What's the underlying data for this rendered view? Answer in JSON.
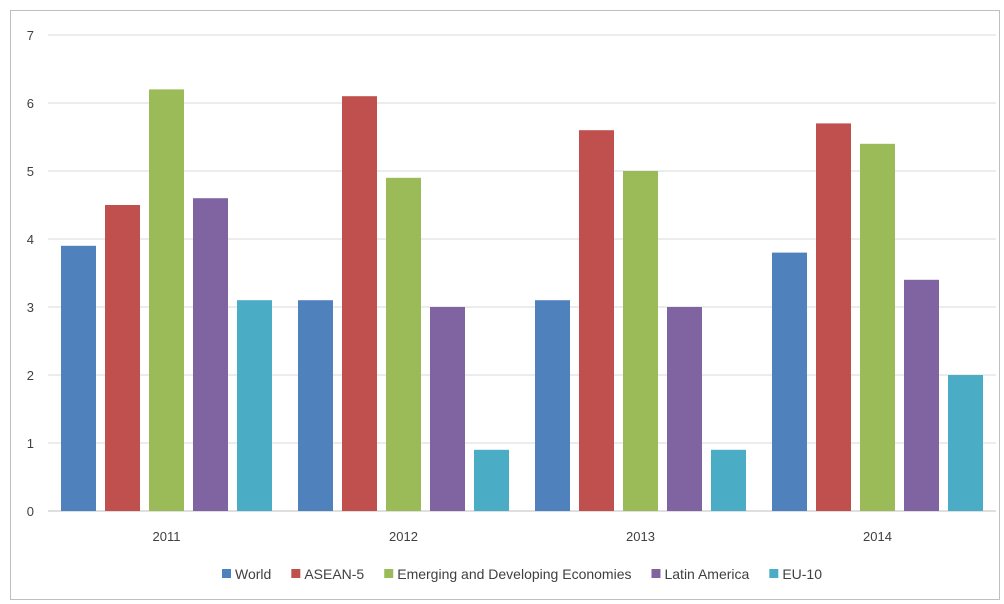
{
  "chart_data": {
    "type": "bar",
    "title": "",
    "xlabel": "",
    "ylabel": "",
    "categories": [
      "2011",
      "2012",
      "2013",
      "2014"
    ],
    "series": [
      {
        "name": "World",
        "color": "#4f81bd",
        "values": [
          3.9,
          3.1,
          3.1,
          3.8
        ]
      },
      {
        "name": "ASEAN-5",
        "color": "#c0504d",
        "values": [
          4.5,
          6.1,
          5.6,
          5.7
        ]
      },
      {
        "name": "Emerging and Developing Economies",
        "color": "#9bbb59",
        "values": [
          6.2,
          4.9,
          5.0,
          5.4
        ]
      },
      {
        "name": "Latin America",
        "color": "#8064a2",
        "values": [
          4.6,
          3.0,
          3.0,
          3.4
        ]
      },
      {
        "name": "EU-10",
        "color": "#4bacc6",
        "values": [
          3.1,
          0.9,
          0.9,
          2.0
        ]
      }
    ],
    "ylim": [
      0,
      7
    ],
    "yticks": [
      "0",
      "1",
      "2",
      "3",
      "4",
      "5",
      "6",
      "7"
    ],
    "grid": true,
    "legend_position": "bottom"
  }
}
